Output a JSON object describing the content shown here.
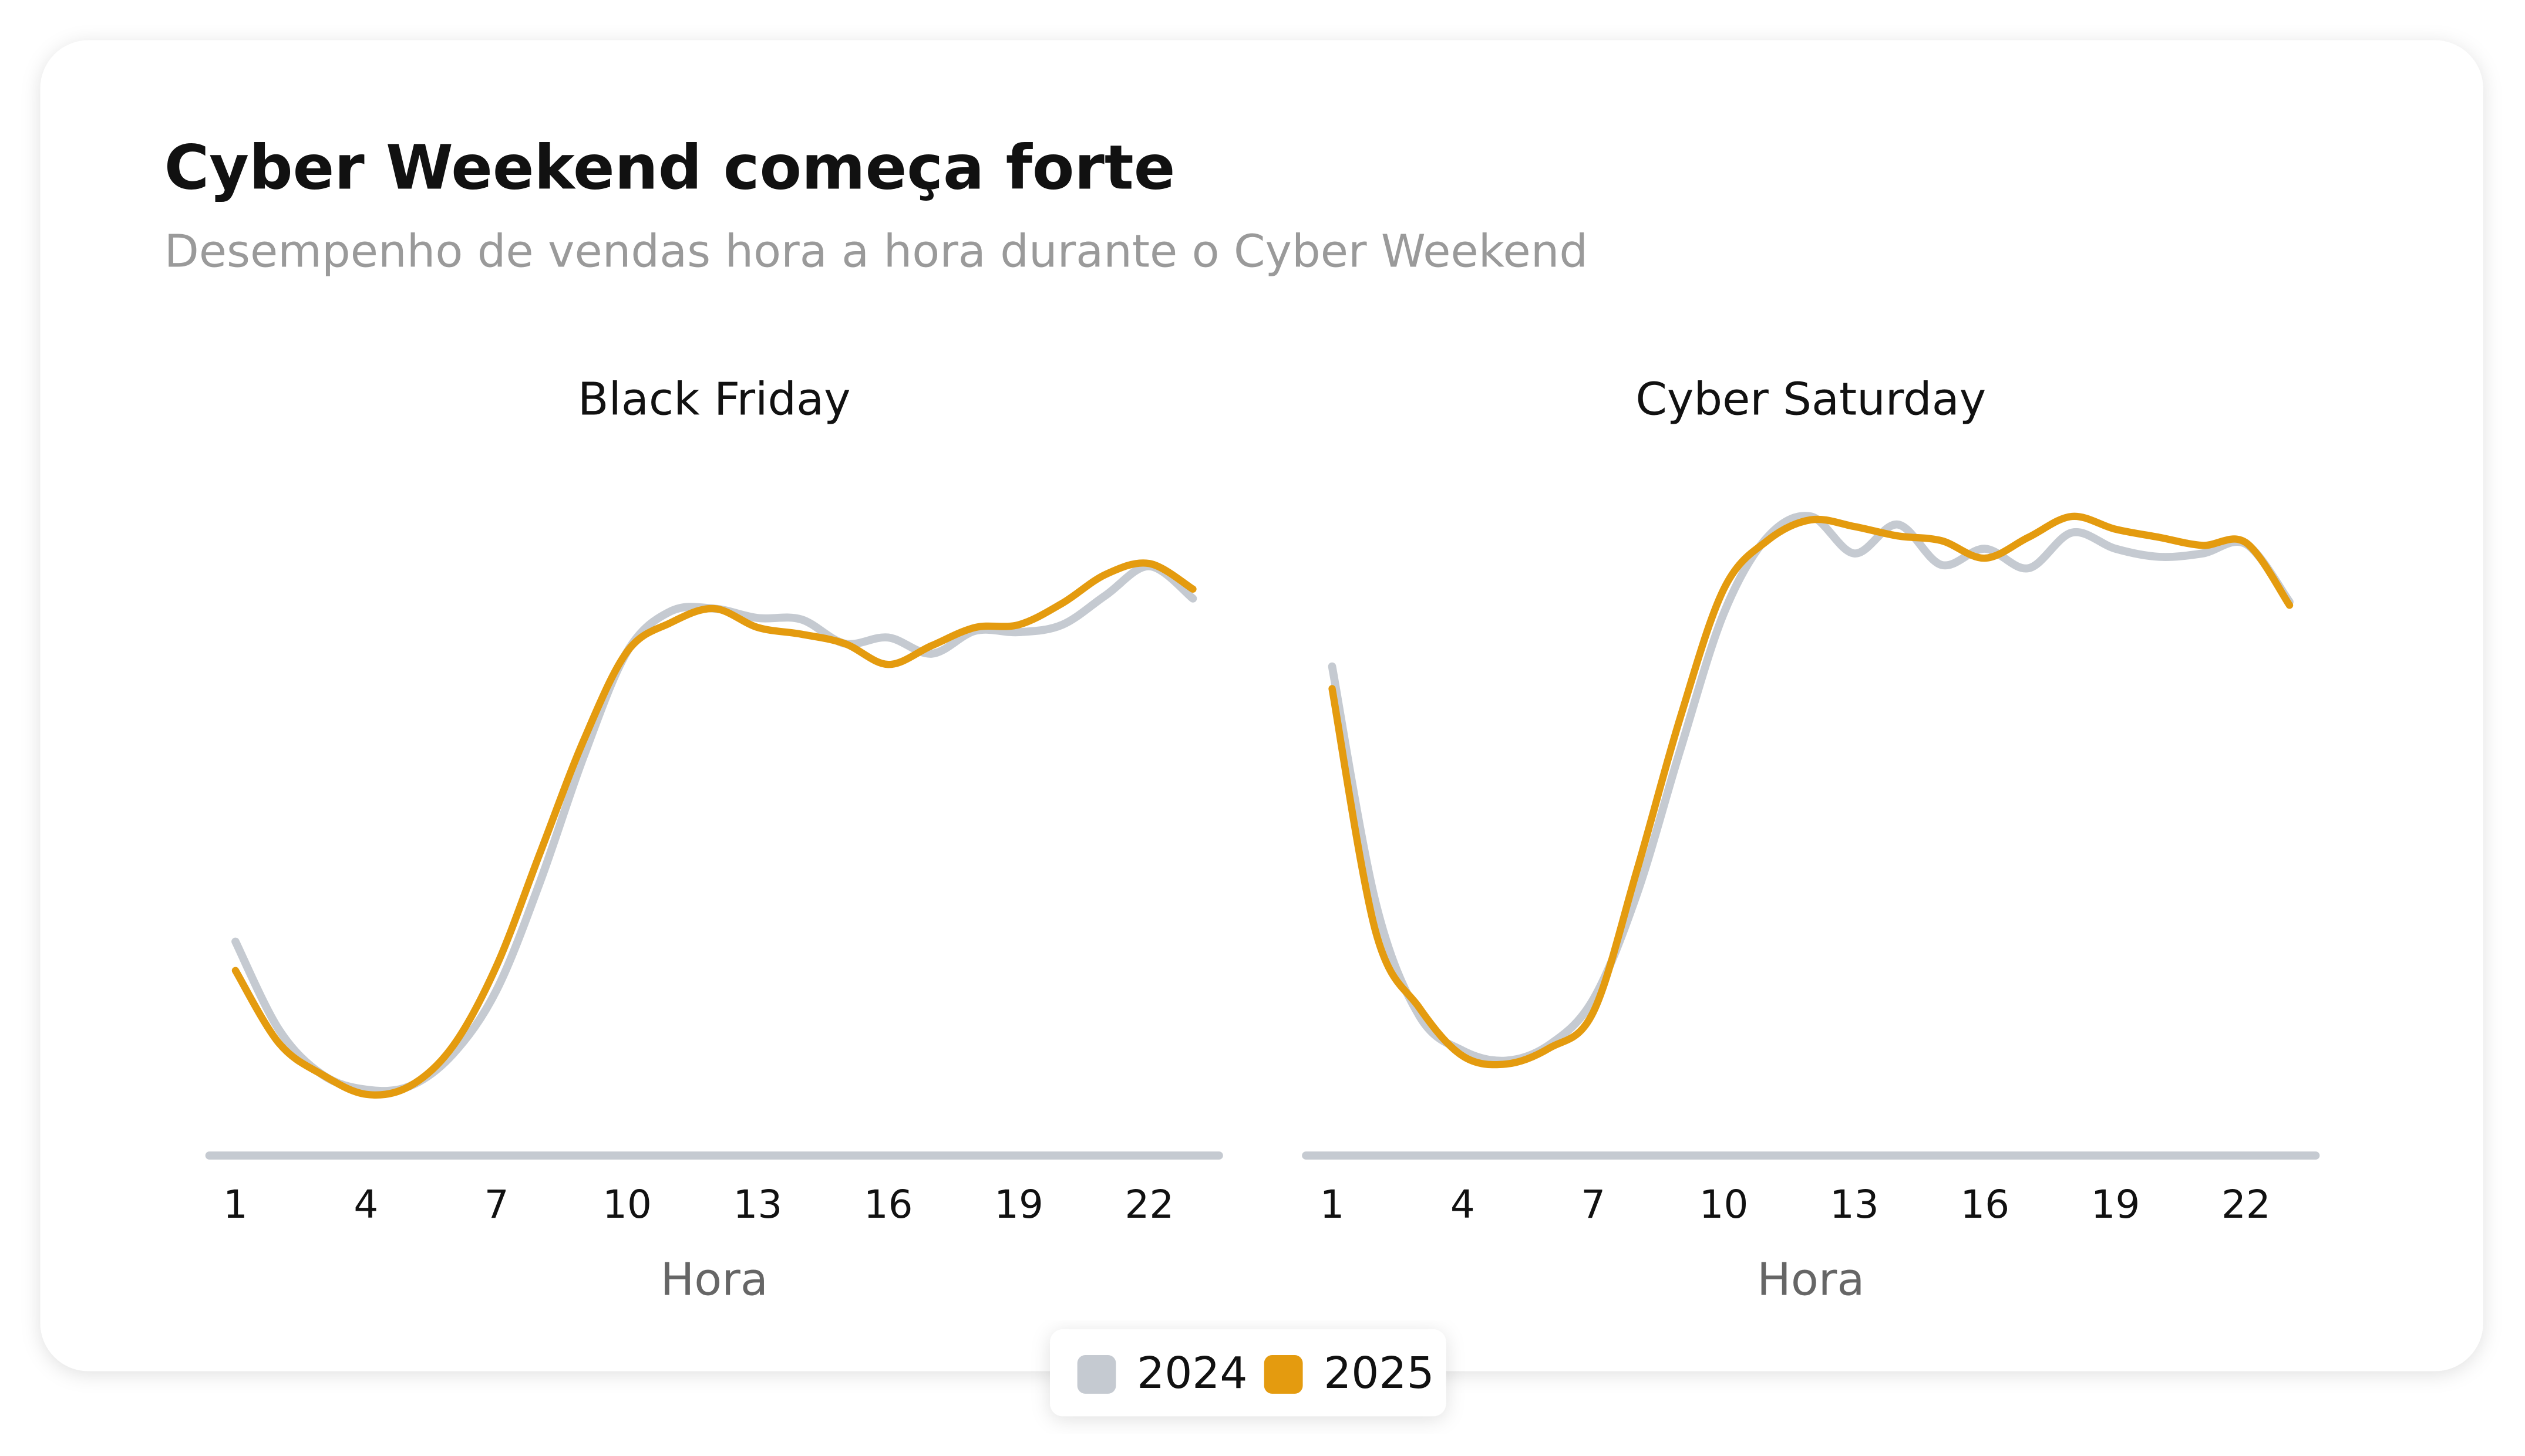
{
  "title": "Cyber Weekend começa forte",
  "subtitle": "Desempenho de vendas hora a hora durante o Cyber Weekend",
  "chart_data": [
    {
      "type": "line",
      "title": "Black Friday",
      "xlabel": "Hora",
      "x": [
        1,
        2,
        3,
        4,
        5,
        6,
        7,
        8,
        9,
        10,
        11,
        12,
        13,
        14,
        15,
        16,
        17,
        18,
        19,
        20,
        21,
        22,
        23
      ],
      "xlim": [
        0.4,
        23.6
      ],
      "xticks": [
        1,
        4,
        7,
        10,
        13,
        16,
        19,
        22
      ],
      "ylim": [
        0,
        100
      ],
      "series": [
        {
          "name": "2024",
          "color": "#c5cad1",
          "values": [
            31.8,
            18.7,
            12.0,
            9.8,
            10.3,
            15.1,
            24.6,
            40.7,
            59.3,
            74.9,
            80.9,
            81.3,
            79.9,
            79.7,
            76.1,
            77.0,
            74.6,
            78.0,
            77.8,
            78.9,
            83.3,
            87.6,
            82.8
          ]
        },
        {
          "name": "2025",
          "color": "#e49b0f",
          "values": [
            27.5,
            16.7,
            12.0,
            9.1,
            10.3,
            16.3,
            28.2,
            45.0,
            61.7,
            74.9,
            79.2,
            81.3,
            78.5,
            77.5,
            76.1,
            73.0,
            75.8,
            78.5,
            78.9,
            82.1,
            86.4,
            88.0,
            84.2
          ]
        }
      ]
    },
    {
      "type": "line",
      "title": "Cyber Saturday",
      "xlabel": "Hora",
      "x": [
        1,
        2,
        3,
        4,
        5,
        6,
        7,
        8,
        9,
        10,
        11,
        12,
        13,
        14,
        15,
        16,
        17,
        18,
        19,
        20,
        21,
        22,
        23
      ],
      "xlim": [
        0.4,
        23.6
      ],
      "xticks": [
        1,
        4,
        7,
        10,
        13,
        16,
        19,
        22
      ],
      "ylim": [
        0,
        100
      ],
      "series": [
        {
          "name": "2024",
          "color": "#c5cad1",
          "values": [
            72.7,
            37.6,
            20.8,
            15.6,
            14.1,
            16.5,
            23.2,
            38.8,
            60.3,
            80.6,
            91.9,
            95.0,
            89.5,
            93.8,
            87.8,
            90.2,
            87.3,
            92.6,
            90.2,
            89.0,
            89.5,
            90.9,
            82.3
          ]
        },
        {
          "name": "2025",
          "color": "#e49b0f",
          "values": [
            69.4,
            33.3,
            22.0,
            14.8,
            13.6,
            16.0,
            21.3,
            42.3,
            65.1,
            84.2,
            91.4,
            94.5,
            93.5,
            92.1,
            91.4,
            88.8,
            91.9,
            95.0,
            93.1,
            91.9,
            90.7,
            91.1,
            81.8
          ]
        }
      ]
    }
  ]
}
